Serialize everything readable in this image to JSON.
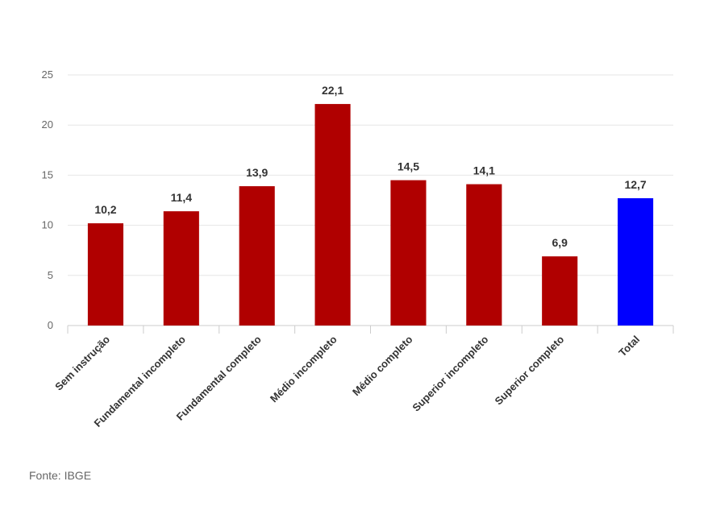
{
  "chart_data": {
    "type": "bar",
    "categories": [
      "Sem instrução",
      "Fundamental incompleto",
      "Fundamental completo",
      "Médio incompleto",
      "Médio completo",
      "Superior incompleto",
      "Superior completo",
      "Total"
    ],
    "values": [
      10.2,
      11.4,
      13.9,
      22.1,
      14.5,
      14.1,
      6.9,
      12.7
    ],
    "data_labels": [
      "10,2",
      "11,4",
      "13,9",
      "22,1",
      "14,5",
      "14,1",
      "6,9",
      "12,7"
    ],
    "bar_colors": [
      "#b00000",
      "#b00000",
      "#b00000",
      "#b00000",
      "#b00000",
      "#b00000",
      "#b00000",
      "#0000ff"
    ],
    "ylim": [
      0,
      25
    ],
    "yticks": [
      0,
      5,
      10,
      15,
      20,
      25
    ],
    "grid": true,
    "title": "",
    "xlabel": "",
    "ylabel": ""
  },
  "source": "Fonte: IBGE"
}
